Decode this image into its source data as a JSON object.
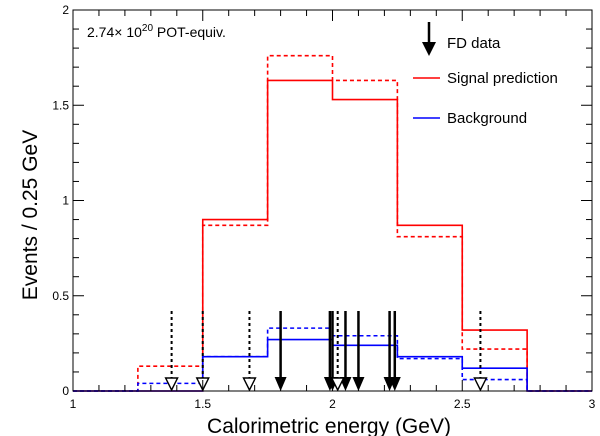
{
  "chart_data": {
    "type": "histogram",
    "xlabel": "Calorimetric energy (GeV)",
    "ylabel": "Events / 0.25 GeV",
    "xlim": [
      1,
      3
    ],
    "ylim": [
      0,
      2
    ],
    "x_ticks": [
      "1",
      "1.5",
      "2",
      "2.5",
      "3"
    ],
    "y_ticks": [
      "0",
      "0.5",
      "1",
      "1.5",
      "2"
    ],
    "annotation": {
      "base": "2.74× 10",
      "exp": "20",
      "suffix": " POT-equiv."
    },
    "bin_edges": [
      1.0,
      1.25,
      1.5,
      1.75,
      2.0,
      2.25,
      2.5,
      2.75,
      3.0
    ],
    "legend": {
      "data_label": "FD data",
      "signal_label": "Signal prediction",
      "background_label": "Background",
      "placement": "top-right"
    },
    "series": [
      {
        "key": "signal_solid",
        "color": "#ff0000",
        "dashed": false,
        "values": [
          0,
          0,
          0.9,
          1.63,
          1.53,
          0.87,
          0.32,
          0
        ]
      },
      {
        "key": "signal_dashed",
        "color": "#ff0000",
        "dashed": true,
        "values": [
          0,
          0.13,
          0.87,
          1.76,
          1.63,
          0.81,
          0.22,
          0
        ]
      },
      {
        "key": "background_solid",
        "color": "#0000ff",
        "dashed": false,
        "values": [
          0,
          0,
          0.18,
          0.27,
          0.24,
          0.18,
          0.12,
          0
        ]
      },
      {
        "key": "background_dashed",
        "color": "#0000ff",
        "dashed": true,
        "values": [
          0,
          0.04,
          0.18,
          0.33,
          0.29,
          0.17,
          0.06,
          0
        ]
      }
    ],
    "data_events_solid": [
      1.8,
      1.99,
      2.0,
      2.05,
      2.1,
      2.22,
      2.24
    ],
    "data_events_dashed": [
      1.38,
      1.5,
      1.68,
      2.02,
      2.57
    ],
    "colors": {
      "axis": "#000000",
      "signal": "#ff0000",
      "background": "#0000ff",
      "data": "#000000"
    }
  }
}
